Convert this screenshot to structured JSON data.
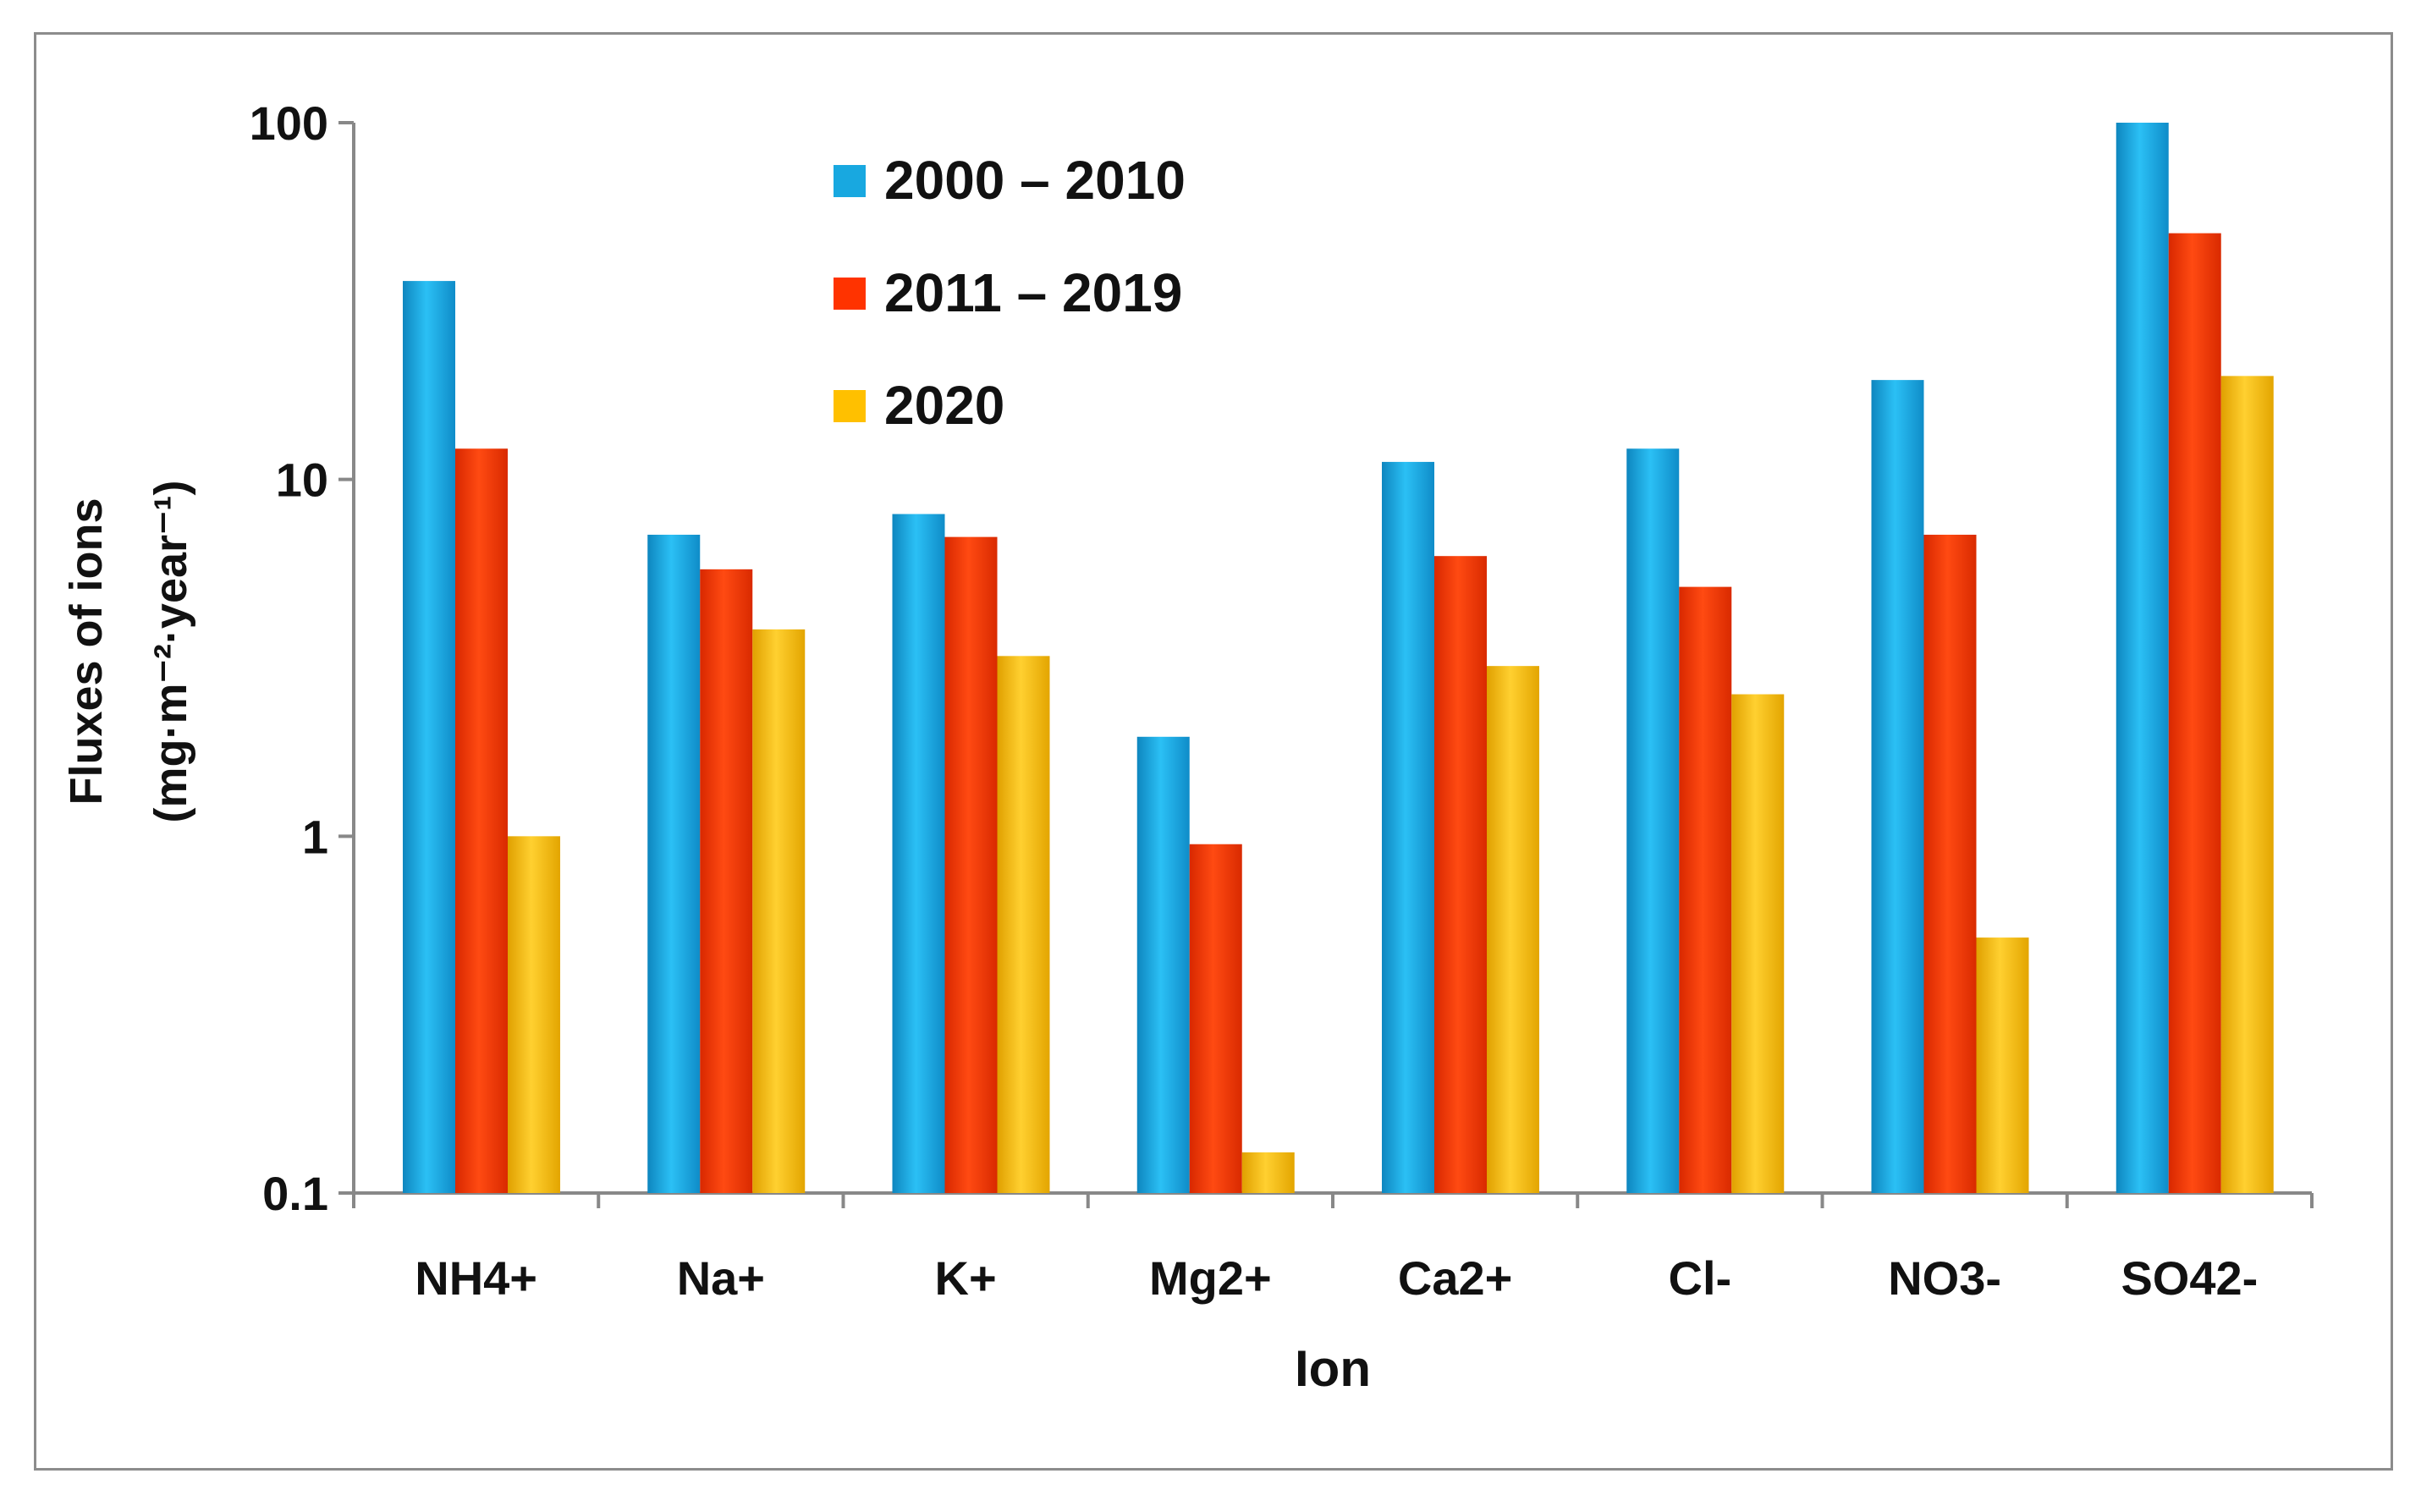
{
  "chart_data": {
    "type": "bar",
    "title": "",
    "xlabel": "Ion",
    "ylabel_line1": "Fluxes of ions",
    "ylabel_line2": "(mg·m⁻²·year⁻¹)",
    "yscale": "log",
    "ylim": [
      0.1,
      100
    ],
    "yticks": [
      {
        "value": 0.1,
        "label": "0.1"
      },
      {
        "value": 1,
        "label": "1"
      },
      {
        "value": 10,
        "label": "10"
      },
      {
        "value": 100,
        "label": "100"
      }
    ],
    "categories": [
      "NH4+",
      "Na+",
      "K+",
      "Mg2+",
      "Ca2+",
      "Cl-",
      "NO3-",
      "SO42-"
    ],
    "series": [
      {
        "name": "2000 – 2010",
        "color": "#18A8E0",
        "values": [
          36,
          7,
          8,
          1.9,
          11.2,
          12.2,
          19,
          100
        ]
      },
      {
        "name": "2011 – 2019",
        "color": "#FF3300",
        "values": [
          12.2,
          5.6,
          6.9,
          0.95,
          6.1,
          5,
          7,
          49
        ]
      },
      {
        "name": "2020",
        "color": "#FFC000",
        "values": [
          1,
          3.8,
          3.2,
          0.13,
          3,
          2.5,
          0.52,
          19.5
        ]
      }
    ],
    "legend_position": "top-left",
    "grid": false
  }
}
